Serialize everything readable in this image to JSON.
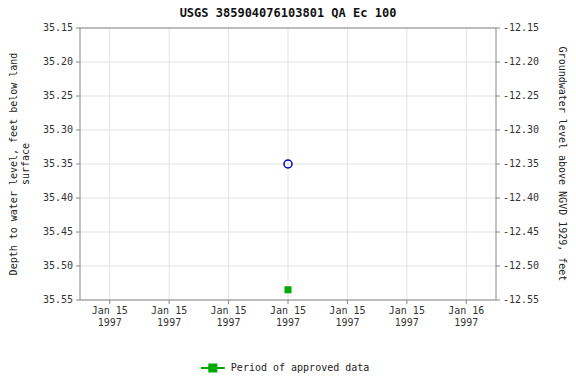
{
  "chart_data": {
    "type": "scatter",
    "title": "USGS 385904076103801 QA Ec 100",
    "y_label": "Depth to water level, feet below land\nsurface",
    "y2_label": "Groundwater level above NGVD 1929, feet",
    "categories": [
      "Jan 15\n1997",
      "Jan 15\n1997",
      "Jan 15\n1997",
      "Jan 15\n1997",
      "Jan 15\n1997",
      "Jan 15\n1997",
      "Jan 16\n1997"
    ],
    "series": [
      {
        "color": "#0000cc",
        "marker": "circle",
        "values": [
          null,
          null,
          null,
          35.35,
          null,
          null,
          null
        ]
      },
      {
        "name": "Period of approved data",
        "color": "#00aa00",
        "marker": "square",
        "values": [
          null,
          null,
          null,
          35.535,
          null,
          null,
          null
        ]
      }
    ],
    "ylim": [
      35.55,
      35.15
    ],
    "yticks": [
      35.15,
      {
        "value": 35.2,
        "label": "35.20"
      },
      35.25,
      {
        "value": 35.3,
        "label": "35.30"
      },
      35.35,
      {
        "value": 35.4,
        "label": "35.40"
      },
      35.45,
      {
        "value": 35.5,
        "label": "35.50"
      },
      35.55
    ],
    "y2lim": [
      -12.55,
      -12.15
    ],
    "y2ticks": [
      -12.15,
      {
        "value": -12.2,
        "label": "-12.20"
      },
      -12.25,
      {
        "value": -12.3,
        "label": "-12.30"
      },
      -12.35,
      {
        "value": -12.4,
        "label": "-12.40"
      },
      -12.45,
      {
        "value": -12.5,
        "label": "-12.50"
      },
      -12.55
    ],
    "grid": true,
    "legend": "bottom"
  }
}
